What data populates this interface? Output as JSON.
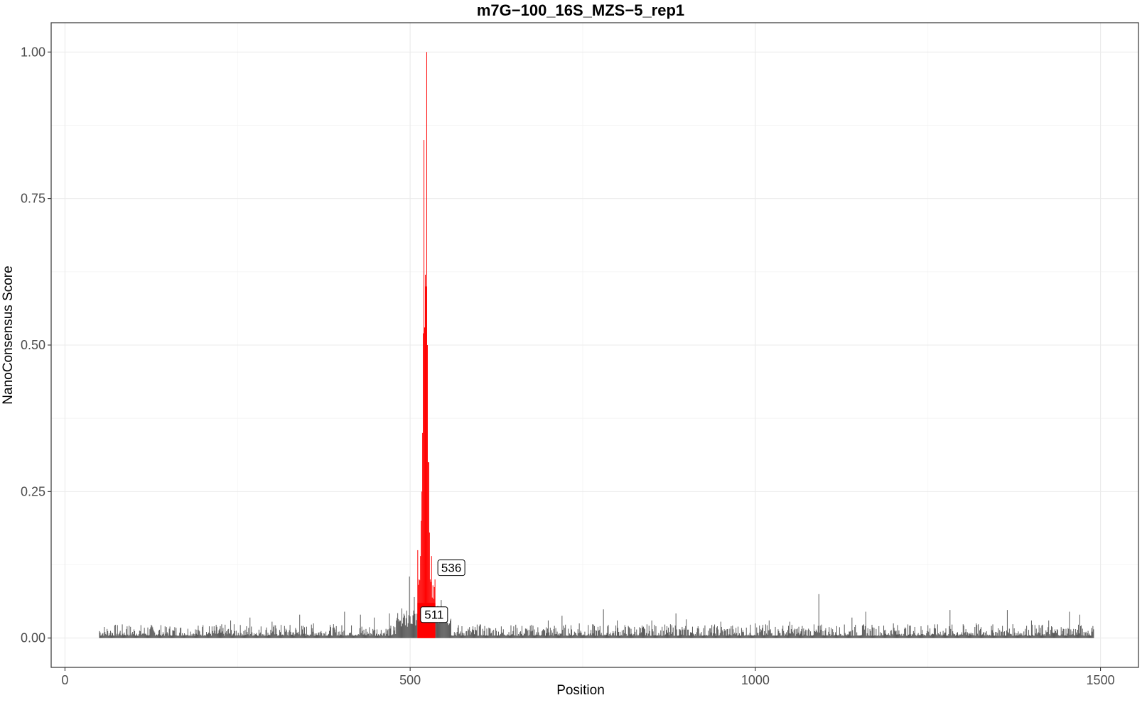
{
  "chart_data": {
    "type": "bar",
    "title": "m7G−100_16S_MZS−5_rep1",
    "xlabel": "Position",
    "ylabel": "NanoConsensus Score",
    "xlim": [
      -20,
      1555
    ],
    "ylim": [
      -0.05,
      1.05
    ],
    "x_ticks": [
      0,
      500,
      1000,
      1500
    ],
    "x_tick_labels": [
      "0",
      "500",
      "1000",
      "1500"
    ],
    "y_ticks": [
      0,
      0.25,
      0.5,
      0.75,
      1.0
    ],
    "y_tick_labels": [
      "0.00",
      "0.25",
      "0.50",
      "0.75",
      "1.00"
    ],
    "grid": true,
    "colors": {
      "background_bars": "#595959",
      "highlight": "#ff0000"
    },
    "position_range": [
      50,
      1490
    ],
    "highlight_range": [
      511,
      536
    ],
    "background_peaks": [
      {
        "x": 50,
        "y": 0.012
      },
      {
        "x": 90,
        "y": 0.02
      },
      {
        "x": 120,
        "y": 0.018
      },
      {
        "x": 145,
        "y": 0.02
      },
      {
        "x": 200,
        "y": 0.022
      },
      {
        "x": 240,
        "y": 0.03
      },
      {
        "x": 268,
        "y": 0.035
      },
      {
        "x": 300,
        "y": 0.028
      },
      {
        "x": 340,
        "y": 0.04
      },
      {
        "x": 360,
        "y": 0.025
      },
      {
        "x": 405,
        "y": 0.045
      },
      {
        "x": 428,
        "y": 0.04
      },
      {
        "x": 448,
        "y": 0.035
      },
      {
        "x": 470,
        "y": 0.042
      },
      {
        "x": 480,
        "y": 0.03
      },
      {
        "x": 490,
        "y": 0.035
      },
      {
        "x": 499,
        "y": 0.105
      },
      {
        "x": 506,
        "y": 0.07
      },
      {
        "x": 545,
        "y": 0.065
      },
      {
        "x": 553,
        "y": 0.04
      },
      {
        "x": 600,
        "y": 0.02
      },
      {
        "x": 650,
        "y": 0.02
      },
      {
        "x": 700,
        "y": 0.03
      },
      {
        "x": 720,
        "y": 0.038
      },
      {
        "x": 745,
        "y": 0.025
      },
      {
        "x": 780,
        "y": 0.049
      },
      {
        "x": 800,
        "y": 0.03
      },
      {
        "x": 850,
        "y": 0.03
      },
      {
        "x": 885,
        "y": 0.042
      },
      {
        "x": 900,
        "y": 0.032
      },
      {
        "x": 950,
        "y": 0.028
      },
      {
        "x": 1000,
        "y": 0.025
      },
      {
        "x": 1020,
        "y": 0.03
      },
      {
        "x": 1050,
        "y": 0.028
      },
      {
        "x": 1092,
        "y": 0.075
      },
      {
        "x": 1140,
        "y": 0.035
      },
      {
        "x": 1160,
        "y": 0.045
      },
      {
        "x": 1200,
        "y": 0.025
      },
      {
        "x": 1250,
        "y": 0.022
      },
      {
        "x": 1282,
        "y": 0.048
      },
      {
        "x": 1320,
        "y": 0.025
      },
      {
        "x": 1365,
        "y": 0.048
      },
      {
        "x": 1400,
        "y": 0.03
      },
      {
        "x": 1425,
        "y": 0.03
      },
      {
        "x": 1455,
        "y": 0.045
      },
      {
        "x": 1470,
        "y": 0.04
      },
      {
        "x": 1490,
        "y": 0.015
      }
    ],
    "highlight_peaks": [
      {
        "x": 511,
        "y": 0.15
      },
      {
        "x": 513,
        "y": 0.1
      },
      {
        "x": 515,
        "y": 0.14
      },
      {
        "x": 516,
        "y": 0.2
      },
      {
        "x": 517,
        "y": 0.25
      },
      {
        "x": 518,
        "y": 0.35
      },
      {
        "x": 519,
        "y": 0.52
      },
      {
        "x": 520,
        "y": 0.85
      },
      {
        "x": 521,
        "y": 0.53
      },
      {
        "x": 522,
        "y": 0.62
      },
      {
        "x": 523,
        "y": 0.6
      },
      {
        "x": 524,
        "y": 1.0
      },
      {
        "x": 525,
        "y": 0.5
      },
      {
        "x": 526,
        "y": 0.3
      },
      {
        "x": 527,
        "y": 0.3
      },
      {
        "x": 528,
        "y": 0.18
      },
      {
        "x": 529,
        "y": 0.1
      },
      {
        "x": 531,
        "y": 0.14
      },
      {
        "x": 533,
        "y": 0.09
      },
      {
        "x": 536,
        "y": 0.1
      }
    ],
    "annotations": [
      {
        "text": "536",
        "x": 536,
        "y": 0.12
      },
      {
        "text": "511",
        "x": 511,
        "y": 0.04
      }
    ]
  }
}
